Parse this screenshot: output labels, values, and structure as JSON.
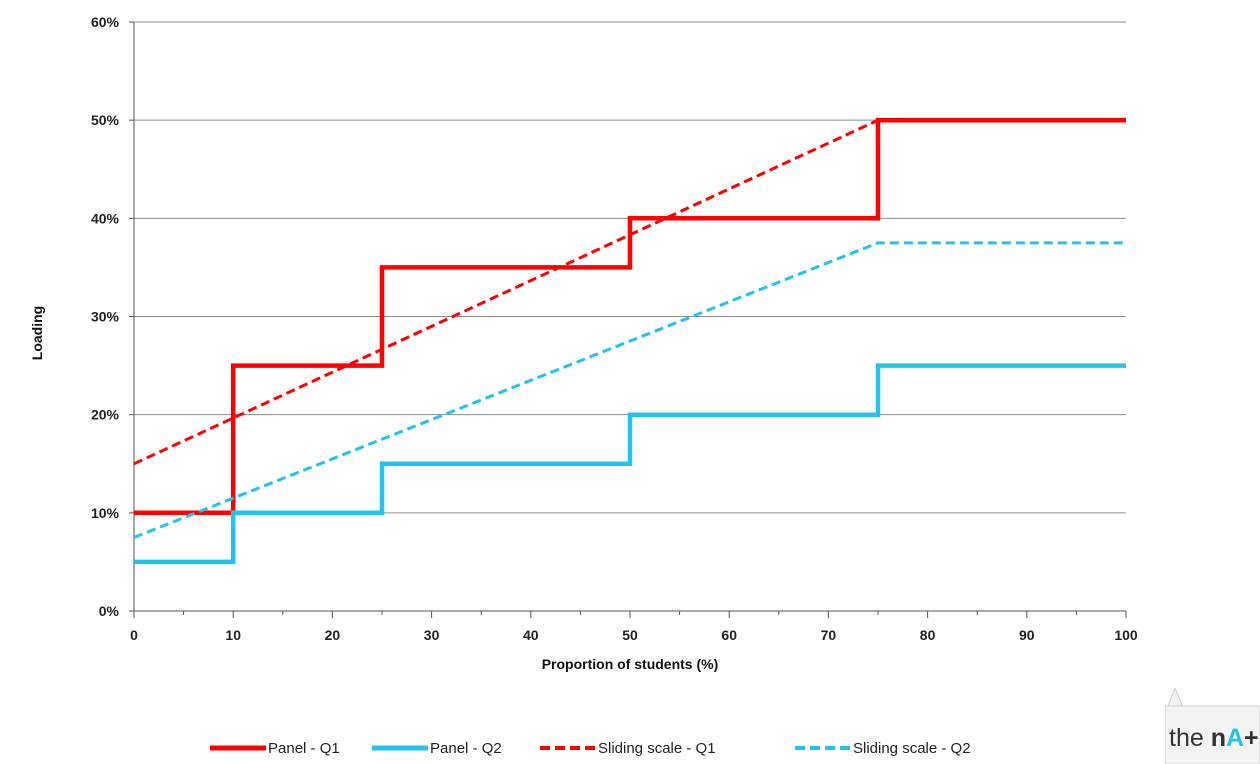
{
  "chart_data": {
    "type": "line",
    "title": "",
    "xlabel": "Proportion of students (%)",
    "ylabel": "Loading",
    "xlim": [
      0,
      100
    ],
    "ylim": [
      0,
      60
    ],
    "x_ticks": [
      0,
      10,
      20,
      30,
      40,
      50,
      60,
      70,
      80,
      90,
      100
    ],
    "y_ticks": [
      0,
      10,
      20,
      30,
      40,
      50,
      60
    ],
    "y_tick_labels": [
      "0%",
      "10%",
      "20%",
      "30%",
      "40%",
      "50%",
      "60%"
    ],
    "grid": "horizontal",
    "legend_position": "bottom",
    "series": [
      {
        "name": "Panel - Q1",
        "color": "#ff0000",
        "style": "solid",
        "points": [
          [
            0,
            10
          ],
          [
            10,
            10
          ],
          [
            10,
            25
          ],
          [
            25,
            25
          ],
          [
            25,
            35
          ],
          [
            50,
            35
          ],
          [
            50,
            40
          ],
          [
            75,
            40
          ],
          [
            75,
            50
          ],
          [
            100,
            50
          ]
        ]
      },
      {
        "name": "Panel - Q2",
        "color": "#22c3ee",
        "style": "solid",
        "points": [
          [
            0,
            5
          ],
          [
            10,
            5
          ],
          [
            10,
            10
          ],
          [
            25,
            10
          ],
          [
            25,
            15
          ],
          [
            50,
            15
          ],
          [
            50,
            20
          ],
          [
            75,
            20
          ],
          [
            75,
            25
          ],
          [
            100,
            25
          ]
        ]
      },
      {
        "name": "Sliding scale - Q1",
        "color": "#ff0000",
        "style": "dashed",
        "points": [
          [
            0,
            15
          ],
          [
            75,
            50
          ]
        ]
      },
      {
        "name": "Sliding scale - Q2",
        "color": "#22c3ee",
        "style": "dashed",
        "points": [
          [
            0,
            7.5
          ],
          [
            75,
            37.5
          ],
          [
            100,
            37.5
          ]
        ]
      }
    ]
  },
  "logo": {
    "prefix": "the ",
    "brand_start": "n",
    "brand_mark": "A",
    "brand_mark_color": "#22c3ee",
    "brand_end": "+iona"
  }
}
